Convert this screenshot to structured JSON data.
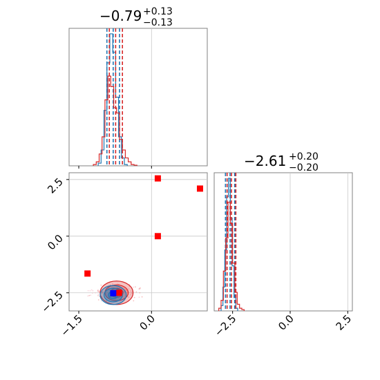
{
  "chart_data": [
    {
      "type": "histogram",
      "panel": "top-left",
      "title": {
        "value": "−0.79",
        "sup": "+0.13",
        "sub": "−0.13"
      },
      "xlim": [
        -1.7,
        1.15
      ],
      "x_ticks_labels": [],
      "grid": true,
      "series": [
        {
          "name": "",
          "color": "#1f77b4",
          "style": "step",
          "bins": [
            -1.1,
            -1.04,
            -0.98,
            -0.92,
            -0.86,
            -0.8,
            -0.74,
            -0.68,
            -0.62,
            -0.56,
            -0.5
          ],
          "heights": [
            0.02,
            0.12,
            0.42,
            0.78,
            1.0,
            0.86,
            0.52,
            0.22,
            0.06,
            0.01
          ],
          "quantiles": [
            -0.92,
            -0.79,
            -0.66
          ]
        },
        {
          "name": "",
          "color": "#d62728",
          "style": "step",
          "bins": [
            -1.2,
            -1.14,
            -1.08,
            -1.02,
            -0.96,
            -0.9,
            -0.84,
            -0.78,
            -0.72,
            -0.66,
            -0.6,
            -0.54,
            -0.48,
            -0.42,
            -0.36,
            -0.3
          ],
          "heights": [
            0.01,
            0.03,
            0.09,
            0.22,
            0.5,
            0.68,
            0.6,
            0.44,
            0.4,
            0.2,
            0.12,
            0.06,
            0.03,
            0.01,
            0.005
          ],
          "quantiles": [
            -0.87,
            -0.74,
            -0.6
          ]
        }
      ]
    },
    {
      "type": "histogram",
      "panel": "bottom-right",
      "title": {
        "value": "−2.61",
        "sup": "+0.20",
        "sub": "−0.20"
      },
      "xlim": [
        -3.3,
        2.7
      ],
      "x_ticks": [
        -2.5,
        0.0,
        2.5
      ],
      "x_ticks_labels": [
        "−2.5",
        "0.0",
        "2.5"
      ],
      "grid": true,
      "series": [
        {
          "name": "",
          "color": "#1f77b4",
          "style": "step",
          "bins": [
            -3.0,
            -2.92,
            -2.84,
            -2.76,
            -2.68,
            -2.6,
            -2.52,
            -2.44,
            -2.36,
            -2.28
          ],
          "heights": [
            0.04,
            0.18,
            0.46,
            0.86,
            1.0,
            0.7,
            0.34,
            0.1,
            0.02
          ],
          "quantiles": [
            -2.81,
            -2.61,
            -2.41
          ]
        },
        {
          "name": "",
          "color": "#d62728",
          "style": "step",
          "bins": [
            -3.1,
            -3.0,
            -2.9,
            -2.8,
            -2.7,
            -2.6,
            -2.5,
            -2.4,
            -2.3,
            -2.2,
            -2.1,
            -2.0
          ],
          "heights": [
            0.02,
            0.08,
            0.3,
            0.55,
            0.82,
            0.66,
            0.36,
            0.14,
            0.05,
            0.02,
            0.01
          ],
          "quantiles": [
            -2.74,
            -2.55,
            -2.36
          ]
        }
      ]
    },
    {
      "type": "scatter",
      "panel": "bottom-left",
      "xlim": [
        -1.7,
        1.15
      ],
      "ylim": [
        -3.3,
        2.8
      ],
      "x_ticks": [
        -1.5,
        0.0
      ],
      "x_ticks_labels": [
        "−1.5",
        "0.0"
      ],
      "y_ticks": [
        -2.5,
        0.0,
        2.5
      ],
      "y_ticks_labels": [
        "−2.5",
        "0.0",
        "2.5"
      ],
      "grid": true,
      "series": [
        {
          "name": "",
          "color": "#ff0000",
          "marker": "square",
          "points": [
            [
              0.13,
              2.55
            ],
            [
              1.0,
              2.1
            ],
            [
              0.13,
              0.0
            ],
            [
              -1.32,
              -1.65
            ],
            [
              -0.67,
              -2.5
            ]
          ]
        },
        {
          "name": "",
          "color": "#0000ff",
          "marker": "square",
          "points": [
            [
              -0.79,
              -2.52
            ]
          ]
        }
      ],
      "contours": [
        {
          "color": "#d62728",
          "center": [
            -0.72,
            -2.5
          ],
          "levels": [
            [
              0.13,
              0.2
            ],
            [
              0.24,
              0.35
            ],
            [
              0.34,
              0.52
            ]
          ]
        },
        {
          "color": "#1f77b4",
          "center": [
            -0.79,
            -2.6
          ],
          "levels": [
            [
              0.1,
              0.16
            ],
            [
              0.19,
              0.3
            ],
            [
              0.27,
              0.42
            ]
          ]
        }
      ]
    }
  ]
}
